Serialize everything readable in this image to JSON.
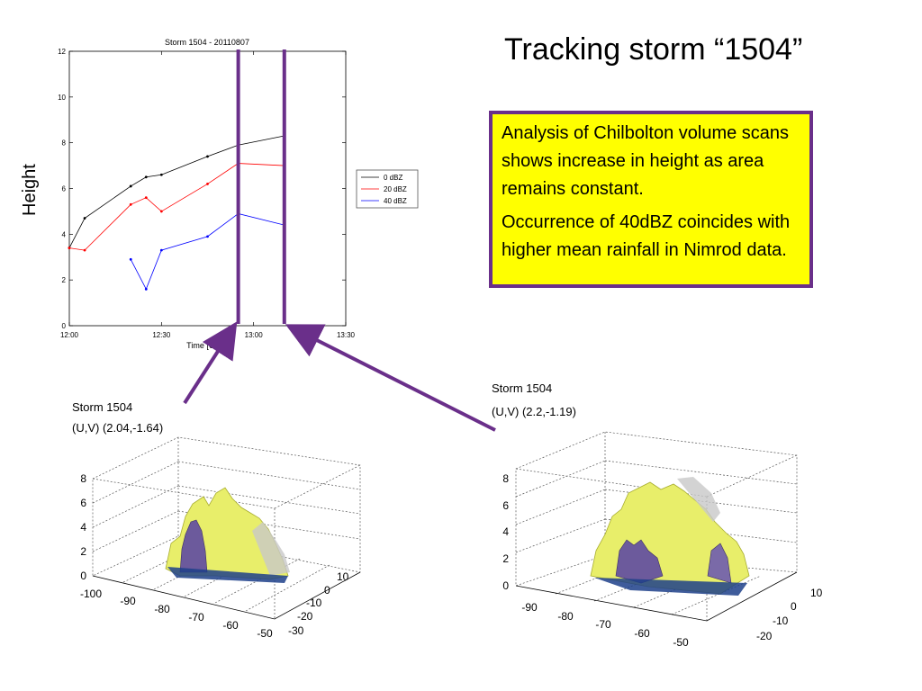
{
  "slide": {
    "title": "Tracking storm “1504”",
    "y_side_label": "Height",
    "note_lines": [
      "Analysis of Chilbolton volume scans shows increase in height as area remains constant.",
      "Occurrence of 40dBZ coincides with higher mean rainfall in Nimrod data."
    ],
    "colors": {
      "box_fill": "#ffff00",
      "box_border": "#6a2f8a",
      "marker_line": "#6a2f8a"
    }
  },
  "chart_data": [
    {
      "type": "line",
      "title": "Storm 1504 - 20110807",
      "xlabel": "Time [UTC]",
      "ylabel": "",
      "x_ticks": [
        "12:00",
        "12:30",
        "13:00",
        "13:30"
      ],
      "x_tick_minutes": [
        0,
        30,
        60,
        90
      ],
      "y_ticks": [
        0,
        2,
        4,
        6,
        8,
        10,
        12
      ],
      "xlim_minutes": [
        0,
        90
      ],
      "ylim": [
        0,
        12
      ],
      "grid": false,
      "legend_position": "right",
      "series": [
        {
          "name": "0 dBZ",
          "color": "#000000",
          "x_minutes": [
            0,
            5,
            20,
            25,
            30,
            45,
            55,
            70
          ],
          "values": [
            3.4,
            4.7,
            6.1,
            6.5,
            6.6,
            7.4,
            7.9,
            8.3
          ]
        },
        {
          "name": "20 dBZ",
          "color": "#ff0000",
          "x_minutes": [
            0,
            5,
            20,
            25,
            30,
            45,
            55,
            70
          ],
          "values": [
            3.4,
            3.3,
            5.3,
            5.6,
            5.0,
            6.2,
            7.1,
            7.0
          ]
        },
        {
          "name": "40 dBZ",
          "color": "#0000ff",
          "x_minutes": [
            20,
            25,
            30,
            45,
            55,
            70
          ],
          "values": [
            2.9,
            1.6,
            3.3,
            3.9,
            4.9,
            4.4
          ]
        }
      ],
      "markers_minutes": [
        55,
        70
      ]
    },
    {
      "type": "surface3d",
      "title": "Storm 1504",
      "subtitle": "(U,V) (2.04,-1.64)",
      "z_ticks": [
        "0",
        "2",
        "4",
        "6",
        "8"
      ],
      "x_ticks": [
        "-100",
        "-90",
        "-80",
        "-70",
        "-60",
        "-50"
      ],
      "y_ticks": [
        "10",
        "0",
        "-10",
        "-20",
        "-30"
      ]
    },
    {
      "type": "surface3d",
      "title": "Storm 1504",
      "subtitle": "(U,V) (2.2,-1.19)",
      "z_ticks": [
        "0",
        "2",
        "4",
        "6",
        "8"
      ],
      "x_ticks": [
        "-90",
        "-80",
        "-70",
        "-60",
        "-50"
      ],
      "y_ticks": [
        "10",
        "0",
        "-10",
        "-20"
      ]
    }
  ]
}
